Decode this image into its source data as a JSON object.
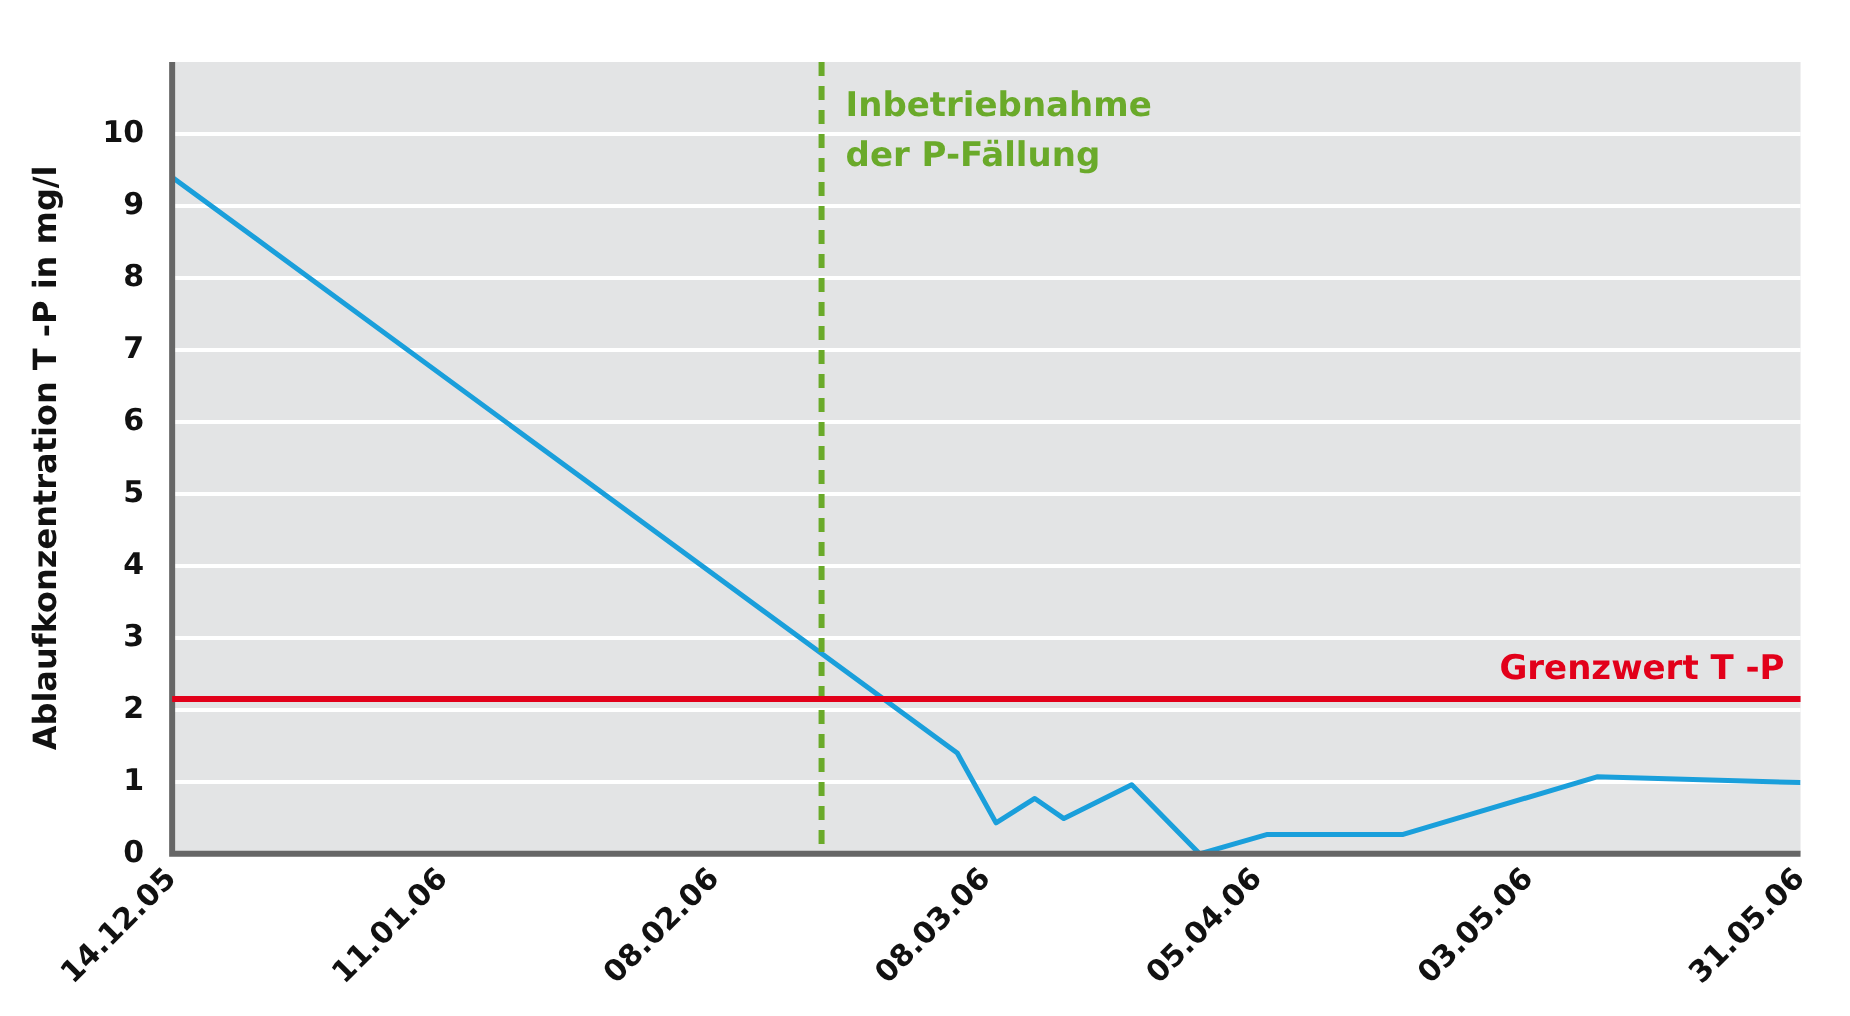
{
  "chart_data": {
    "type": "line",
    "ylabel": "Ablaufkonzentration T -P in mg/l",
    "x": [
      "2005-12-14",
      "2006-03-05",
      "2006-03-09",
      "2006-03-13",
      "2006-03-16",
      "2006-03-23",
      "2006-03-30",
      "2006-04-06",
      "2006-04-20",
      "2006-05-10",
      "2006-05-31"
    ],
    "series": [
      {
        "color": "#1a9fdb",
        "values": [
          9.4,
          1.4,
          0.43,
          0.77,
          0.49,
          0.96,
          0,
          0.27,
          0.27,
          1.07,
          0.99
        ]
      }
    ],
    "xlim": [
      "2005-12-14",
      "2006-05-31"
    ],
    "xticks": [
      {
        "value": "2005-12-14",
        "label": "14.12.05"
      },
      {
        "value": "2006-01-11",
        "label": "11.01.06"
      },
      {
        "value": "2006-02-08",
        "label": "08.02.06"
      },
      {
        "value": "2006-03-08",
        "label": "08.03.06"
      },
      {
        "value": "2006-04-05",
        "label": "05.04.06"
      },
      {
        "value": "2006-05-03",
        "label": "03.05.06"
      },
      {
        "value": "2006-05-31",
        "label": "31.05.06"
      }
    ],
    "ylim": [
      0,
      11
    ],
    "yticks": [
      0,
      1,
      2,
      3,
      4,
      5,
      6,
      7,
      8,
      9,
      10
    ],
    "ref_lines": [
      {
        "axis": "x",
        "value": "2006-02-19",
        "label": "Inbetriebnahme der P-Fällung",
        "color": "#6aaa2a",
        "line_style": "dashed"
      },
      {
        "axis": "y",
        "value": 2.15,
        "label": "Grenzwert T -P",
        "color": "#e2001a",
        "line_style": "solid"
      }
    ],
    "grid": "y",
    "legend": false,
    "marker": "none",
    "line_style": "solid"
  }
}
